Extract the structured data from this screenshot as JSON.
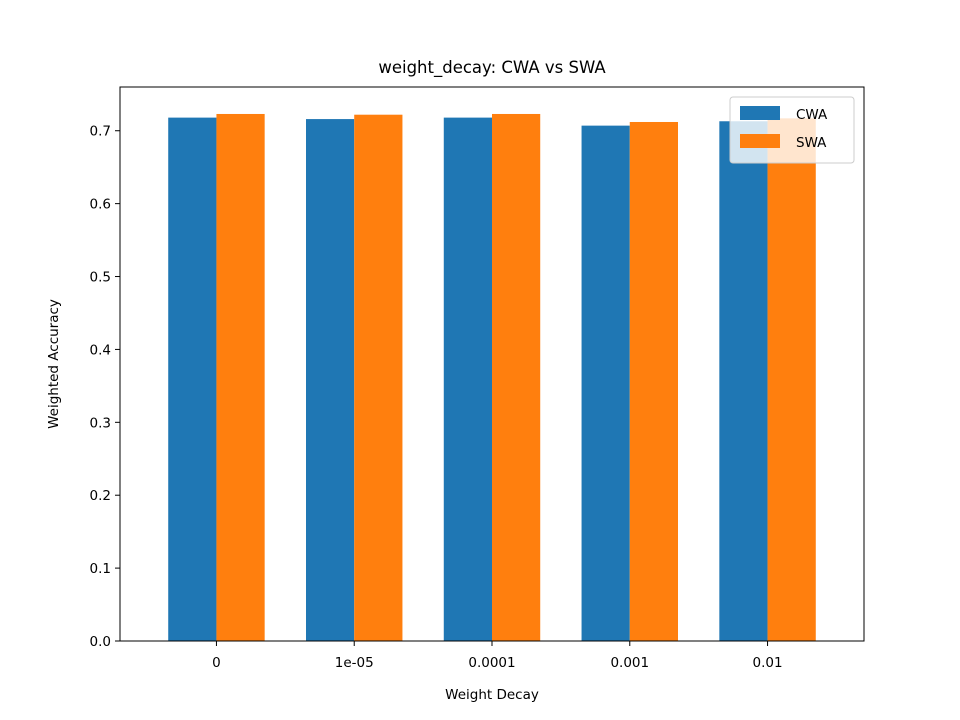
{
  "chart_data": {
    "type": "bar",
    "title": "weight_decay: CWA vs SWA",
    "xlabel": "Weight Decay",
    "ylabel": "Weighted Accuracy",
    "categories": [
      "0",
      "1e-05",
      "0.0001",
      "0.001",
      "0.01"
    ],
    "series": [
      {
        "name": "CWA",
        "color": "#1f77b4",
        "values": [
          0.718,
          0.716,
          0.718,
          0.707,
          0.713
        ]
      },
      {
        "name": "SWA",
        "color": "#ff7f0e",
        "values": [
          0.723,
          0.722,
          0.723,
          0.712,
          0.717
        ]
      }
    ],
    "ylim": [
      0,
      0.76
    ],
    "yticks": [
      "0.0",
      "0.1",
      "0.2",
      "0.3",
      "0.4",
      "0.5",
      "0.6",
      "0.7"
    ],
    "grid": false,
    "legend_position": "upper right"
  }
}
